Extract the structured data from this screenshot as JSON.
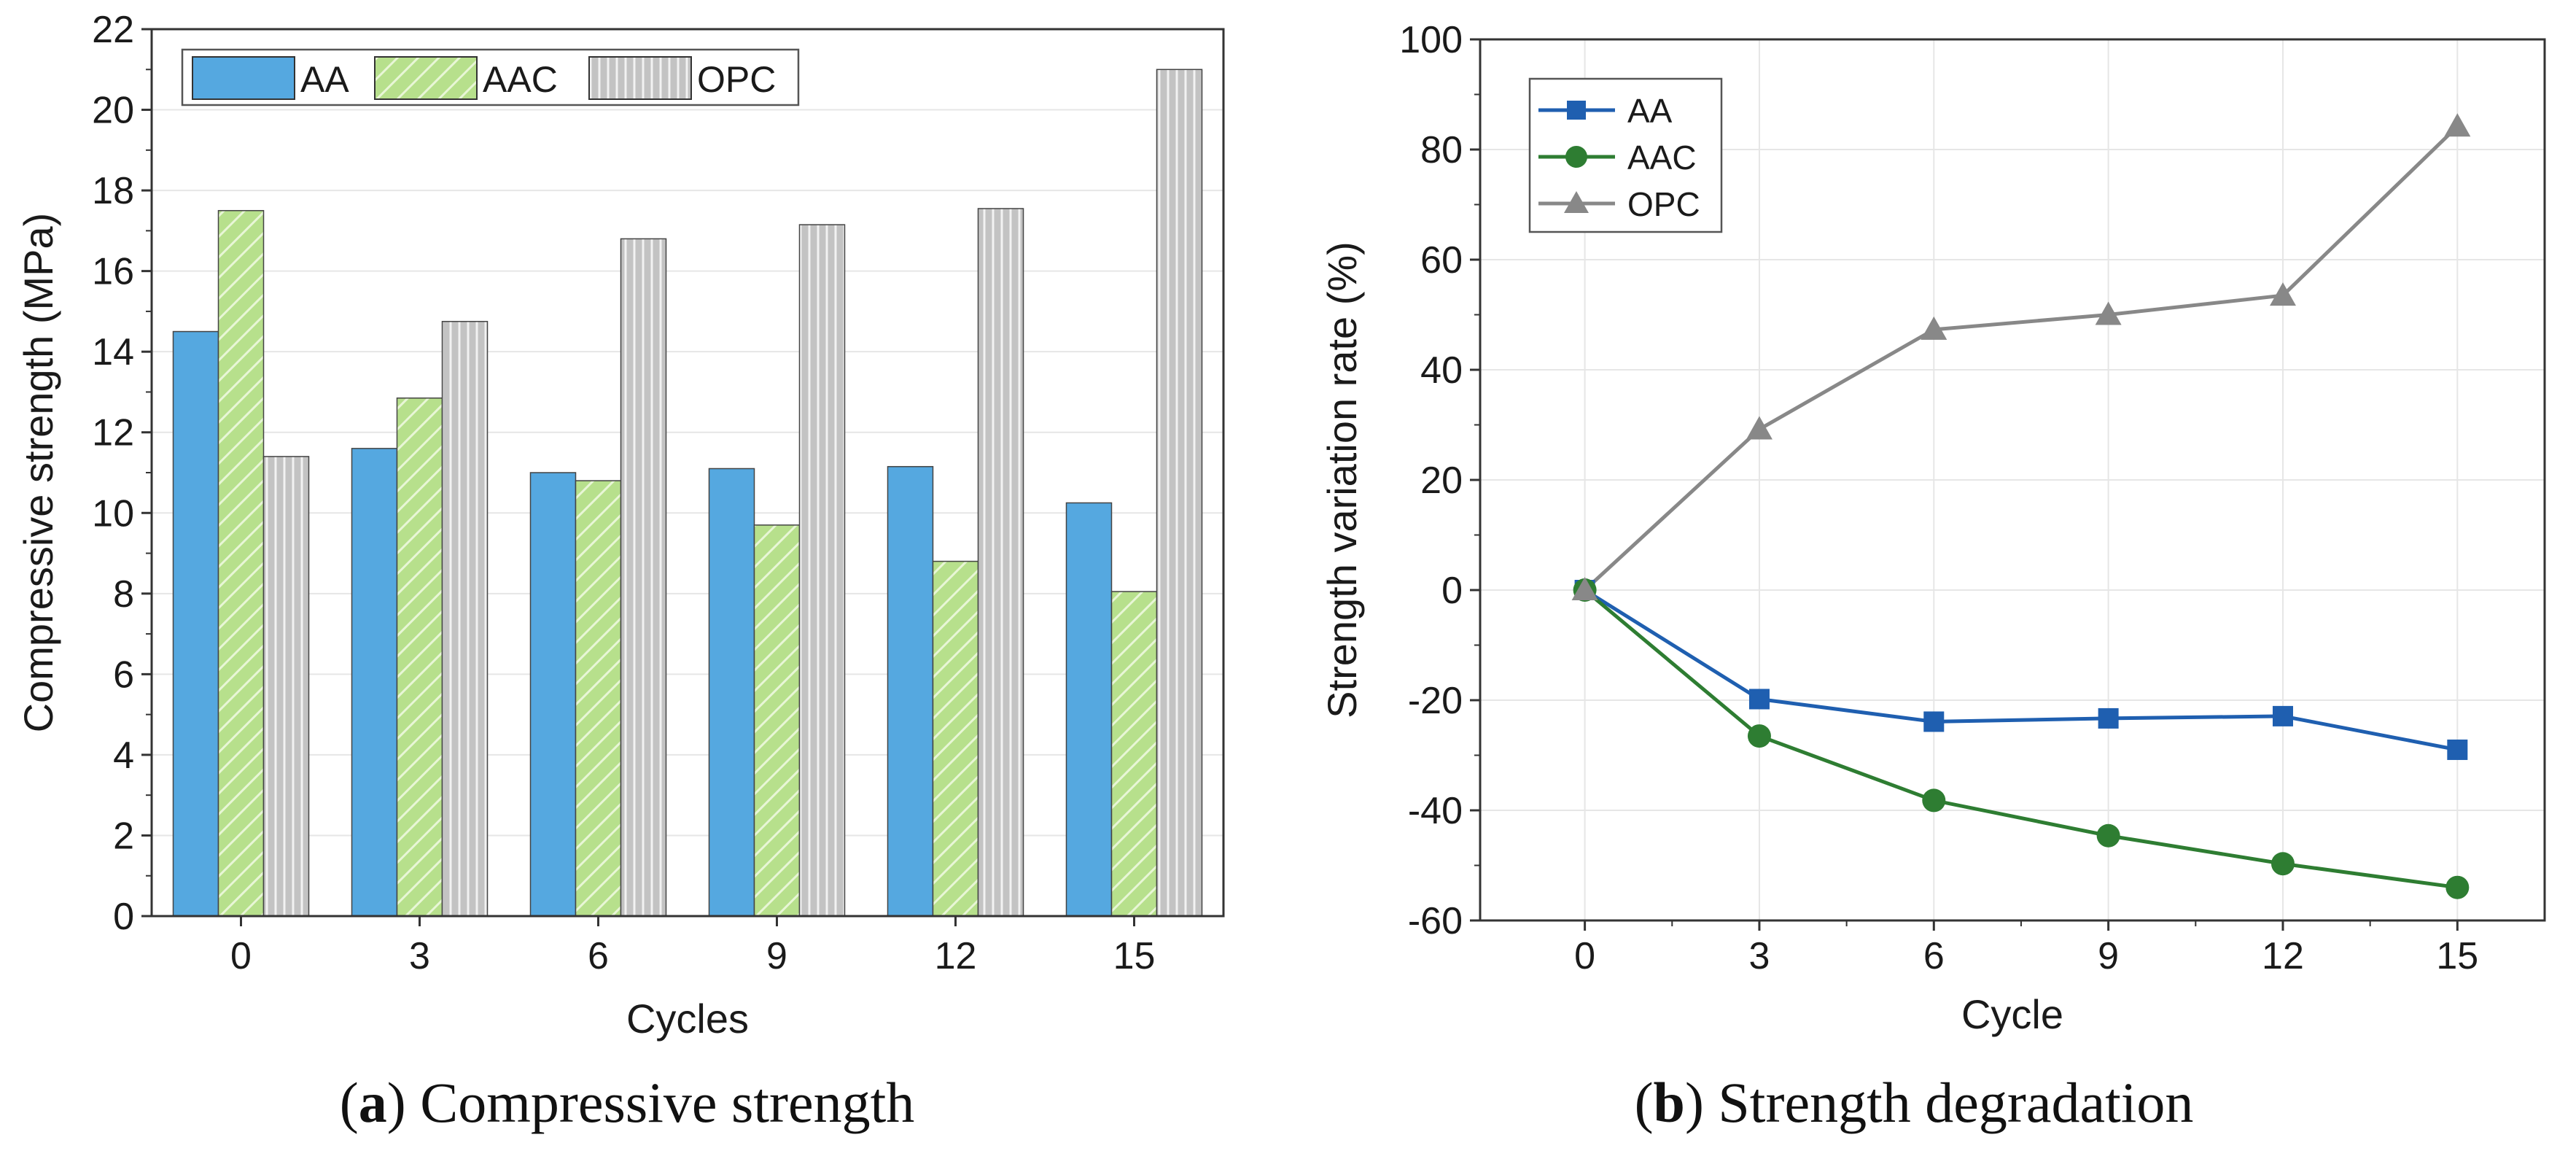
{
  "chart_data": [
    {
      "type": "bar",
      "panel": "a",
      "caption_letter": "a",
      "caption_text": "Compressive strength",
      "categories": [
        "0",
        "3",
        "6",
        "9",
        "12",
        "15"
      ],
      "series": [
        {
          "name": "AA",
          "values": [
            14.5,
            11.6,
            11.0,
            11.1,
            11.15,
            10.25
          ]
        },
        {
          "name": "AAC",
          "values": [
            17.5,
            12.85,
            10.8,
            9.7,
            8.8,
            8.05
          ]
        },
        {
          "name": "OPC",
          "values": [
            11.4,
            14.75,
            16.8,
            17.15,
            17.55,
            21.0
          ]
        }
      ],
      "xlabel": "Cycles",
      "ylabel": "Compressive strength (MPa)",
      "ylim": [
        0,
        22
      ],
      "yticks": [
        "0",
        "2",
        "4",
        "6",
        "8",
        "10",
        "12",
        "14",
        "16",
        "18",
        "20",
        "22"
      ],
      "grid": true,
      "legend_position": "top-left"
    },
    {
      "type": "line",
      "panel": "b",
      "caption_letter": "b",
      "caption_text": "Strength degradation",
      "x": [
        0,
        3,
        6,
        9,
        12,
        15
      ],
      "xticks": [
        "0",
        "3",
        "6",
        "9",
        "12",
        "15"
      ],
      "series": [
        {
          "name": "AA",
          "marker": "square",
          "values": [
            0,
            -19.8,
            -23.9,
            -23.3,
            -22.9,
            -29.0
          ]
        },
        {
          "name": "AAC",
          "marker": "circle",
          "values": [
            0,
            -26.5,
            -38.2,
            -44.6,
            -49.7,
            -54.0
          ]
        },
        {
          "name": "OPC",
          "marker": "triangle",
          "values": [
            0,
            29.2,
            47.3,
            50.0,
            53.5,
            84.2
          ]
        }
      ],
      "xlabel": "Cycle",
      "ylabel": "Strength variation rate (%)",
      "xlim": [
        -1.8,
        16.5
      ],
      "ylim": [
        -60,
        100
      ],
      "yticks": [
        "-60",
        "-40",
        "-20",
        "0",
        "20",
        "40",
        "60",
        "80",
        "100"
      ],
      "grid": true,
      "legend_position": "top-left"
    }
  ],
  "colors": {
    "AA_bar": "#55a8e0",
    "AAC_bar": "#b7e08c",
    "OPC_bar": "#c3c3c3",
    "AA_line": "#1f5fb0",
    "AAC_line": "#2e7d32",
    "OPC_line": "#888888",
    "grid": "#e6e6e6",
    "axis": "#333333"
  }
}
